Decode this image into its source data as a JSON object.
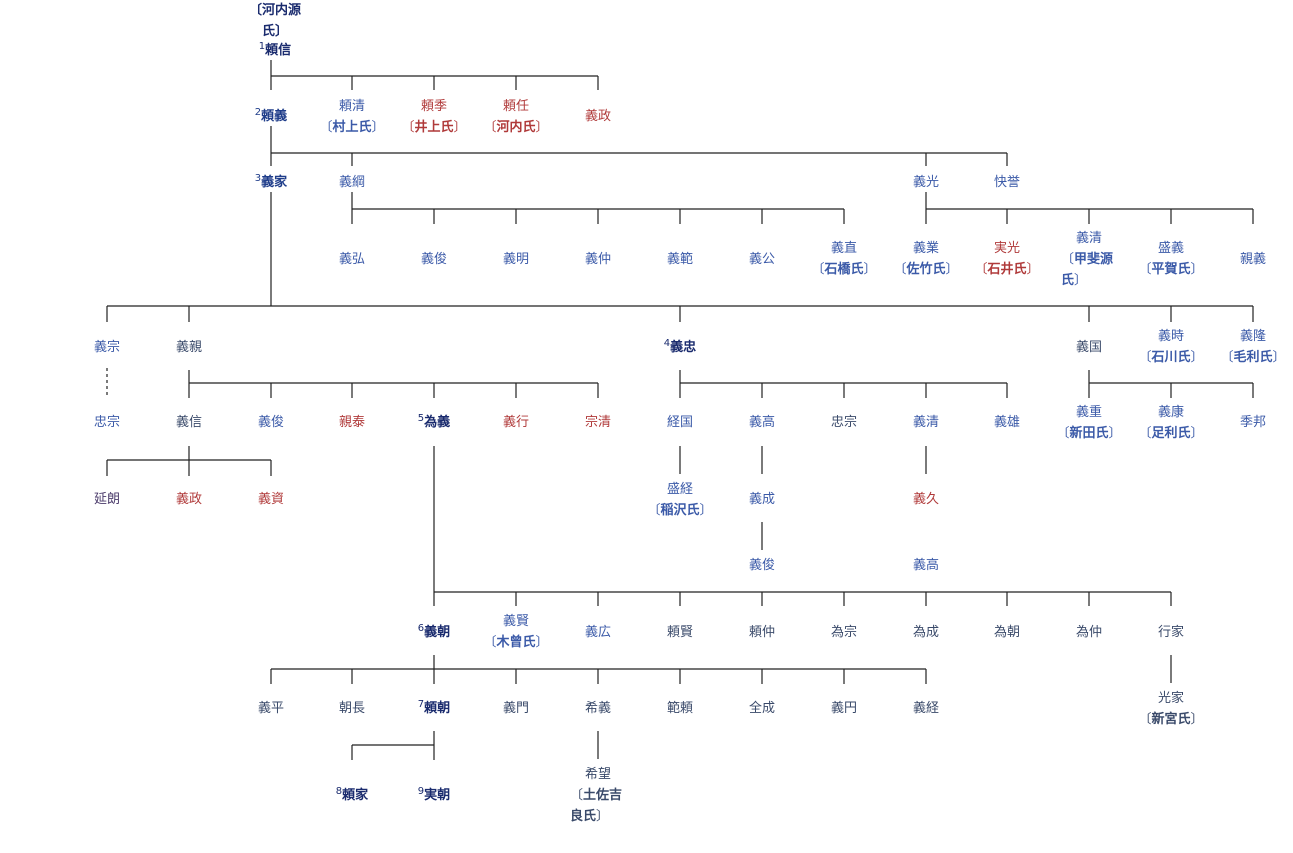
{
  "root_clan": {
    "line1": "〔河内源",
    "line2": "氏〕"
  },
  "people": [
    {
      "id": "raishin",
      "name": "頼信",
      "num": "1",
      "color": "#1a2b6e",
      "bold": true
    },
    {
      "id": "yoriyoshi",
      "name": "頼義",
      "num": "2",
      "color": "#1f3d8a",
      "bold": true
    },
    {
      "id": "yorikiyo",
      "name": "頼清",
      "clan": "村上氏",
      "color": "#3b5aa8"
    },
    {
      "id": "yorisue",
      "name": "頼季",
      "clan": "井上氏",
      "color": "#b03a3a"
    },
    {
      "id": "yoritou",
      "name": "頼任",
      "clan": "河内氏",
      "color": "#b03a3a"
    },
    {
      "id": "yoshimasa0",
      "name": "義政",
      "color": "#b03a3a"
    },
    {
      "id": "yoshiie",
      "name": "義家",
      "num": "3",
      "color": "#1f3d8a",
      "bold": true
    },
    {
      "id": "yoshitsuna",
      "name": "義綱",
      "color": "#3b5aa8"
    },
    {
      "id": "yoshimitsu",
      "name": "義光",
      "color": "#3b5aa8"
    },
    {
      "id": "kaiyo",
      "name": "快誉",
      "color": "#3b5aa8"
    },
    {
      "id": "yoshihiro",
      "name": "義弘",
      "color": "#3b5aa8"
    },
    {
      "id": "yoshitoshi0",
      "name": "義俊",
      "color": "#3b5aa8"
    },
    {
      "id": "yoshiaki",
      "name": "義明",
      "color": "#3b5aa8"
    },
    {
      "id": "yoshinaka0",
      "name": "義仲",
      "color": "#3b5aa8"
    },
    {
      "id": "yoshinori",
      "name": "義範",
      "color": "#3b5aa8"
    },
    {
      "id": "yoshikimi",
      "name": "義公",
      "color": "#3b5aa8"
    },
    {
      "id": "yoshinao",
      "name": "義直",
      "clan": "石橋氏",
      "color": "#3b5aa8"
    },
    {
      "id": "yoshinari0",
      "name": "義業",
      "clan": "佐竹氏",
      "color": "#3b5aa8"
    },
    {
      "id": "sanemitsu",
      "name": "実光",
      "clan": "石井氏",
      "color": "#b03a3a"
    },
    {
      "id": "yoshikiyo0",
      "name": "義清",
      "clan": "甲斐源氏",
      "color": "#3b5aa8",
      "col": true
    },
    {
      "id": "moriyoshi",
      "name": "盛義",
      "clan": "平賀氏",
      "color": "#3b5aa8"
    },
    {
      "id": "chikayoshi",
      "name": "親義",
      "color": "#3b5aa8"
    },
    {
      "id": "yoshimune",
      "name": "義宗",
      "color": "#3b5aa8"
    },
    {
      "id": "yoshichika",
      "name": "義親",
      "color": "#3a4a6a"
    },
    {
      "id": "yoshitada",
      "name": "義忠",
      "num": "4",
      "color": "#1a2b6e",
      "bold": true
    },
    {
      "id": "yoshikuni",
      "name": "義国",
      "color": "#3a4a6a"
    },
    {
      "id": "yoshitoki",
      "name": "義時",
      "clan": "石川氏",
      "color": "#3b5aa8"
    },
    {
      "id": "yoshitaka0",
      "name": "義隆",
      "clan": "毛利氏",
      "color": "#3b5aa8"
    },
    {
      "id": "tadamune",
      "name": "忠宗",
      "color": "#3b5aa8"
    },
    {
      "id": "yoshinobu",
      "name": "義信",
      "color": "#3a4a6a"
    },
    {
      "id": "yoshitoshi1",
      "name": "義俊",
      "color": "#3b5aa8"
    },
    {
      "id": "chikayasu",
      "name": "親泰",
      "color": "#b03a3a"
    },
    {
      "id": "tameyoshi",
      "name": "為義",
      "num": "5",
      "color": "#1a2b6e",
      "bold": true
    },
    {
      "id": "yoshiyuki",
      "name": "義行",
      "color": "#b03a3a"
    },
    {
      "id": "munekiyo",
      "name": "宗清",
      "color": "#b03a3a"
    },
    {
      "id": "tsunekuni",
      "name": "経国",
      "color": "#3b5aa8"
    },
    {
      "id": "yoshitaka1",
      "name": "義高",
      "color": "#3b5aa8"
    },
    {
      "id": "tadamune2",
      "name": "忠宗",
      "color": "#3a4a6a"
    },
    {
      "id": "yoshikiyo1",
      "name": "義清",
      "color": "#3b5aa8"
    },
    {
      "id": "yoshio",
      "name": "義雄",
      "color": "#3b5aa8"
    },
    {
      "id": "yoshishige",
      "name": "義重",
      "clan": "新田氏",
      "color": "#3b5aa8"
    },
    {
      "id": "yoshiyasu",
      "name": "義康",
      "clan": "足利氏",
      "color": "#3b5aa8"
    },
    {
      "id": "suekuni",
      "name": "季邦",
      "color": "#3b5aa8"
    },
    {
      "id": "nobuakira",
      "name": "延朗",
      "color": "#4a3a6a"
    },
    {
      "id": "yoshimasa1",
      "name": "義政",
      "color": "#b03a3a"
    },
    {
      "id": "yoshisuke",
      "name": "義資",
      "color": "#b03a3a"
    },
    {
      "id": "moritsune",
      "name": "盛経",
      "clan": "稲沢氏",
      "color": "#3b5aa8"
    },
    {
      "id": "yoshinari1",
      "name": "義成",
      "color": "#3b5aa8"
    },
    {
      "id": "yoshihisa",
      "name": "義久",
      "color": "#b03a3a"
    },
    {
      "id": "yoshitoshi2",
      "name": "義俊",
      "color": "#3b5aa8"
    },
    {
      "id": "yoshitaka2",
      "name": "義高",
      "color": "#3b5aa8"
    },
    {
      "id": "yoshitomo",
      "name": "義朝",
      "num": "6",
      "color": "#1a2b6e",
      "bold": true
    },
    {
      "id": "yoshikata",
      "name": "義賢",
      "clan": "木曾氏",
      "color": "#3b5aa8"
    },
    {
      "id": "yoshihiro2",
      "name": "義広",
      "color": "#3b5aa8"
    },
    {
      "id": "yorikata",
      "name": "頼賢",
      "color": "#3a4a6a"
    },
    {
      "id": "yorinaka",
      "name": "頼仲",
      "color": "#3a4a6a"
    },
    {
      "id": "tamemune",
      "name": "為宗",
      "color": "#3a4a6a"
    },
    {
      "id": "tamenari",
      "name": "為成",
      "color": "#3a4a6a"
    },
    {
      "id": "tametomo",
      "name": "為朝",
      "color": "#3a4a6a"
    },
    {
      "id": "tamenaka",
      "name": "為仲",
      "color": "#3a4a6a"
    },
    {
      "id": "yukiie",
      "name": "行家",
      "color": "#3a4a6a"
    },
    {
      "id": "yoshihira",
      "name": "義平",
      "color": "#3a4a6a"
    },
    {
      "id": "tomonaga",
      "name": "朝長",
      "color": "#3a4a6a"
    },
    {
      "id": "yoritomo",
      "name": "頼朝",
      "num": "7",
      "color": "#1a2b6e",
      "bold": true
    },
    {
      "id": "yoshikado",
      "name": "義門",
      "color": "#3a4a6a"
    },
    {
      "id": "mareyoshi",
      "name": "希義",
      "color": "#3a4a6a"
    },
    {
      "id": "noriyori",
      "name": "範頼",
      "color": "#3a4a6a"
    },
    {
      "id": "zenjo",
      "name": "全成",
      "color": "#3a4a6a"
    },
    {
      "id": "gien",
      "name": "義円",
      "color": "#3a4a6a"
    },
    {
      "id": "yoshitsune",
      "name": "義経",
      "color": "#3a4a6a"
    },
    {
      "id": "mitsuie",
      "name": "光家",
      "clan": "新宮氏",
      "color": "#3a4a6a"
    },
    {
      "id": "yoriie",
      "name": "頼家",
      "num": "8",
      "color": "#1a2b6e",
      "bold": true
    },
    {
      "id": "sanetomo",
      "name": "実朝",
      "num": "9",
      "color": "#1a2b6e",
      "bold": true
    },
    {
      "id": "kibou",
      "name": "希望",
      "clan": "土佐吉良氏",
      "color": "#3a4a6a",
      "col": true
    }
  ]
}
